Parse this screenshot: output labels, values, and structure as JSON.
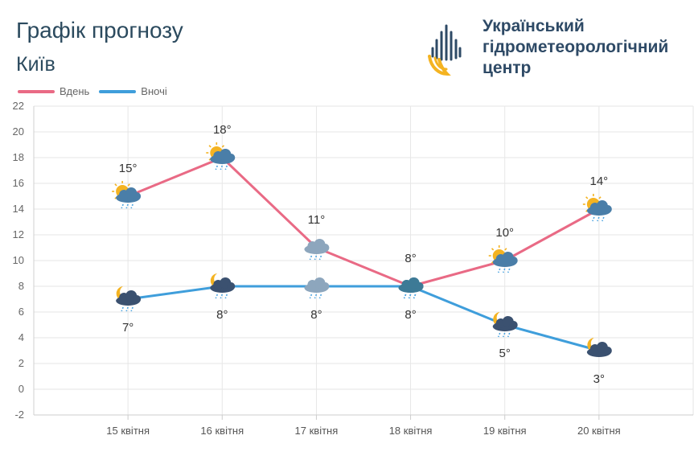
{
  "header": {
    "title": "Графік прогнозу",
    "city": "Київ",
    "org_line1": "Український",
    "org_line2": "гідрометеорологічний",
    "org_line3": "центр"
  },
  "legend": {
    "day": "Вдень",
    "night": "Вночі"
  },
  "colors": {
    "day": "#e96a85",
    "night": "#3f9edb",
    "grid": "#e5e5e5",
    "text": "#2b4a5e"
  },
  "chart_data": {
    "type": "line",
    "title": "Графік прогнозу",
    "xlabel": "",
    "ylabel": "",
    "ylim": [
      -2,
      22
    ],
    "yticks": [
      -2,
      0,
      2,
      4,
      6,
      8,
      10,
      12,
      14,
      16,
      18,
      20,
      22
    ],
    "grid": true,
    "legend_position": "top-left",
    "categories": [
      "15 квітня",
      "16 квітня",
      "17 квітня",
      "18 квітня",
      "19 квітня",
      "20 квітня"
    ],
    "series": [
      {
        "name": "Вдень",
        "values": [
          15,
          18,
          11,
          8,
          10,
          14
        ],
        "labels": [
          "15°",
          "18°",
          "11°",
          "8°",
          "10°",
          "14°"
        ],
        "icons": [
          "sun-cloud-rain-icon",
          "sun-cloud-rain-icon",
          "cloud-rain-icon",
          "cloud-rain-icon",
          "sun-cloud-rain-icon",
          "sun-cloud-rain-icon"
        ]
      },
      {
        "name": "Вночі",
        "values": [
          7,
          8,
          8,
          8,
          5,
          3
        ],
        "labels": [
          "7°",
          "8°",
          "8°",
          "8°",
          "5°",
          "3°"
        ],
        "icons": [
          "moon-cloud-rain-icon",
          "moon-cloud-rain-icon",
          "cloud-rain-icon",
          "cloud-rain-icon",
          "moon-cloud-rain-icon",
          "moon-cloud-icon"
        ]
      }
    ]
  }
}
